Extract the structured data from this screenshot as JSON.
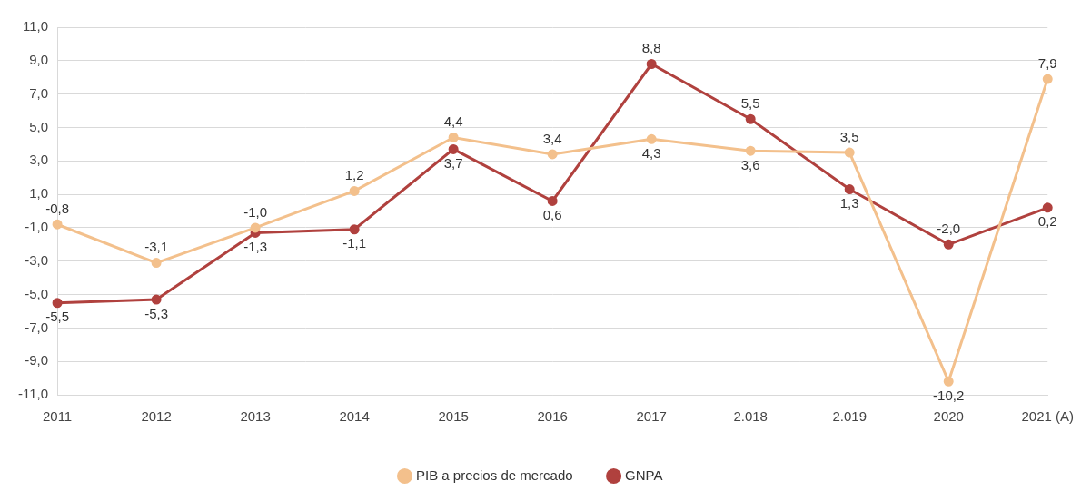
{
  "chart_data": {
    "type": "line",
    "categories": [
      "2011",
      "2012",
      "2013",
      "2014",
      "2015",
      "2016",
      "2017",
      "2.018",
      "2.019",
      "2020",
      "2021 (A)"
    ],
    "series": [
      {
        "name": "PIB a precios de mercado",
        "color": "#f3c08c",
        "marker": "circle",
        "line_style": "solid",
        "values": [
          -0.8,
          -3.1,
          -1.0,
          1.2,
          4.4,
          3.4,
          4.3,
          3.6,
          3.5,
          -10.2,
          7.9
        ],
        "value_labels": [
          "-0,8",
          "-3,1",
          "-1,0",
          "1,2",
          "4,4",
          "3,4",
          "4,3",
          "3,6",
          "3,5",
          "-10,2",
          "7,9"
        ]
      },
      {
        "name": "GNPA",
        "color": "#b0413e",
        "marker": "circle",
        "line_style": "solid",
        "values": [
          -5.5,
          -5.3,
          -1.3,
          -1.1,
          3.7,
          0.6,
          8.8,
          5.5,
          1.3,
          -2.0,
          0.2
        ],
        "value_labels": [
          "-5,5",
          "-5,3",
          "-1,3",
          "-1,1",
          "3,7",
          "0,6",
          "8,8",
          "5,5",
          "1,3",
          "-2,0",
          "0,2"
        ]
      }
    ],
    "ylim": [
      -11,
      11
    ],
    "yticks": [
      {
        "value": -11,
        "label": "-11,0"
      },
      {
        "value": -9,
        "label": "-9,0"
      },
      {
        "value": -7,
        "label": "-7,0"
      },
      {
        "value": -5,
        "label": "-5,0"
      },
      {
        "value": -3,
        "label": "-3,0"
      },
      {
        "value": -1,
        "label": "-1,0"
      },
      {
        "value": 1,
        "label": "1,0"
      },
      {
        "value": 3,
        "label": "3,0"
      },
      {
        "value": 5,
        "label": "5,0"
      },
      {
        "value": 7,
        "label": "7,0"
      },
      {
        "value": 9,
        "label": "9,0"
      },
      {
        "value": 11,
        "label": "11,0"
      }
    ],
    "grid": true,
    "legend": "bottom",
    "data_labels": true
  }
}
